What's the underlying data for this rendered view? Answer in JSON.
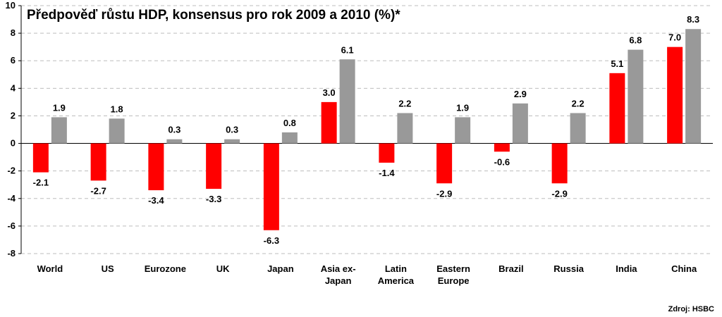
{
  "chart_data": {
    "type": "bar",
    "title": "Předpověď růstu HDP, konsensus pro rok 2009 a 2010 (%)*",
    "source": "Zdroj: HSBC",
    "categories": [
      [
        "World"
      ],
      [
        "US"
      ],
      [
        "Eurozone"
      ],
      [
        "UK"
      ],
      [
        "Japan"
      ],
      [
        "Asia ex-",
        "Japan"
      ],
      [
        "Latin",
        "America"
      ],
      [
        "Eastern",
        "Europe"
      ],
      [
        "Brazil"
      ],
      [
        "Russia"
      ],
      [
        "India"
      ],
      [
        "China"
      ]
    ],
    "series": [
      {
        "color": "#ff0000",
        "values": [
          -2.1,
          -2.7,
          -3.4,
          -3.3,
          -6.3,
          3.0,
          -1.4,
          -2.9,
          -0.6,
          -2.9,
          5.1,
          7.0
        ]
      },
      {
        "color": "#999999",
        "values": [
          1.9,
          1.8,
          0.3,
          0.3,
          0.8,
          6.1,
          2.2,
          1.9,
          2.9,
          2.2,
          6.8,
          8.3
        ]
      }
    ],
    "ylim": [
      -8,
      10
    ],
    "yticks": [
      -8,
      -6,
      -4,
      -2,
      0,
      2,
      4,
      6,
      8,
      10
    ],
    "grid": true,
    "legend": "none"
  }
}
